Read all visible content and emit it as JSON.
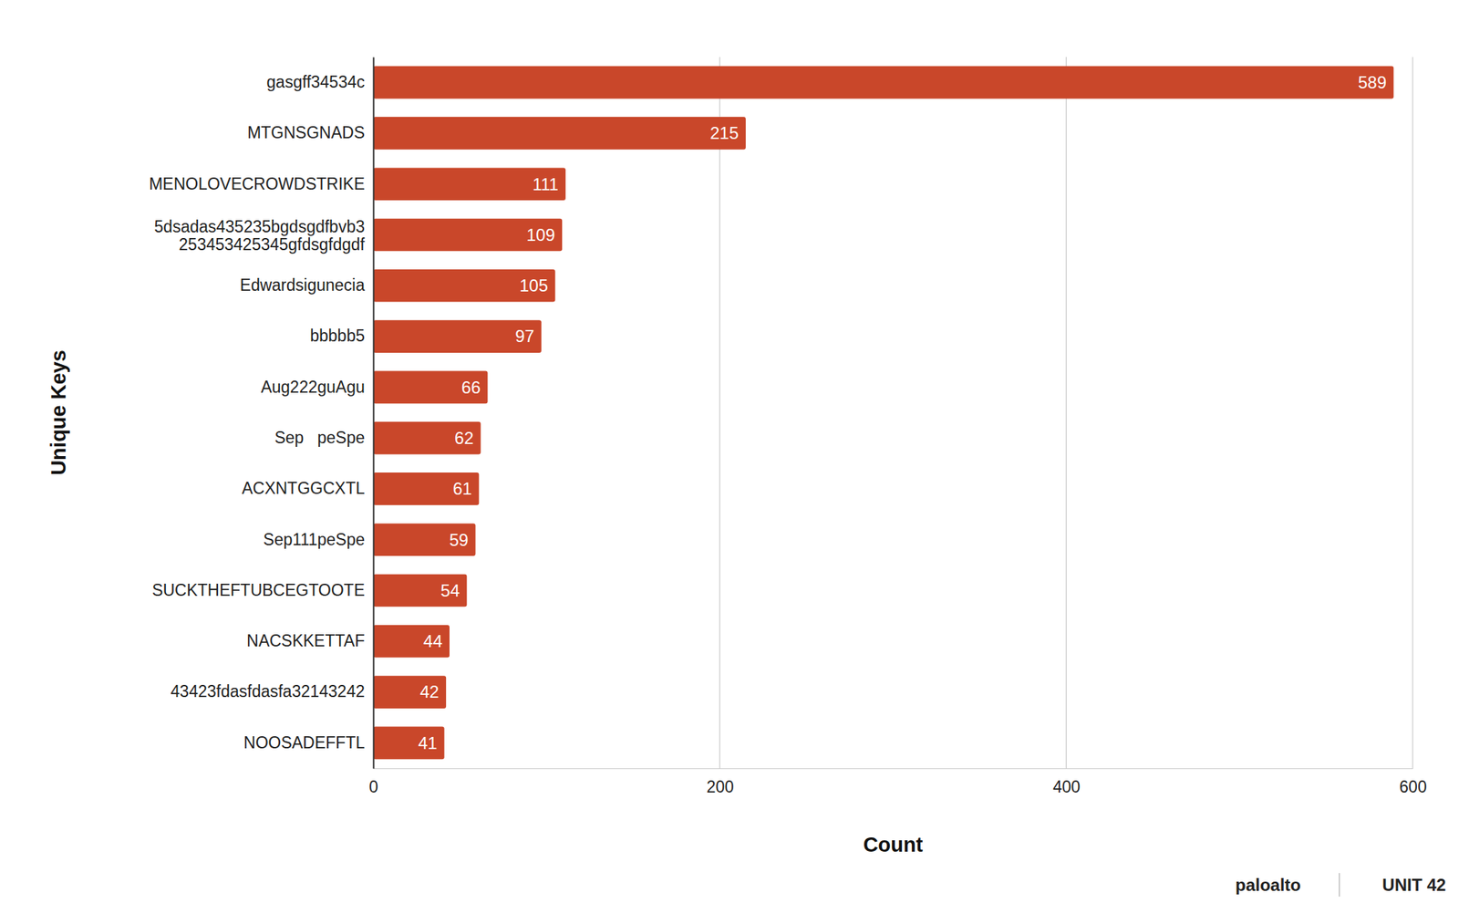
{
  "chart_data": {
    "type": "bar",
    "orientation": "horizontal",
    "x_label": "Count",
    "y_label": "Unique Keys",
    "categories": [
      "gasgff34534c",
      "MTGNSGNADS",
      "MENOLOVECROWDSTRIKE",
      "5dsadas435235bgdsgdfbvb3253453425345gfdsgfdgdf",
      "Edwardsigunecia",
      "bbbbb5",
      "Aug222guAgu",
      "Sep   peSpe",
      "ACXNTGGCXTL",
      "Sep111peSpe",
      "SUCKTHEFTUBCEGTOOTE",
      "NACSKKETTAF",
      "43423fdasfdasfa32143242",
      "NOOSADEFFTL"
    ],
    "values": [
      589,
      215,
      111,
      109,
      105,
      97,
      66,
      62,
      61,
      59,
      54,
      44,
      42,
      41
    ],
    "color": "#c9472a",
    "xlim": [
      0,
      600
    ],
    "xticks": [
      0,
      200,
      400,
      600
    ],
    "grid": true,
    "data_labels": true,
    "annotations": [
      "paloalto",
      "UNIT 42"
    ]
  }
}
